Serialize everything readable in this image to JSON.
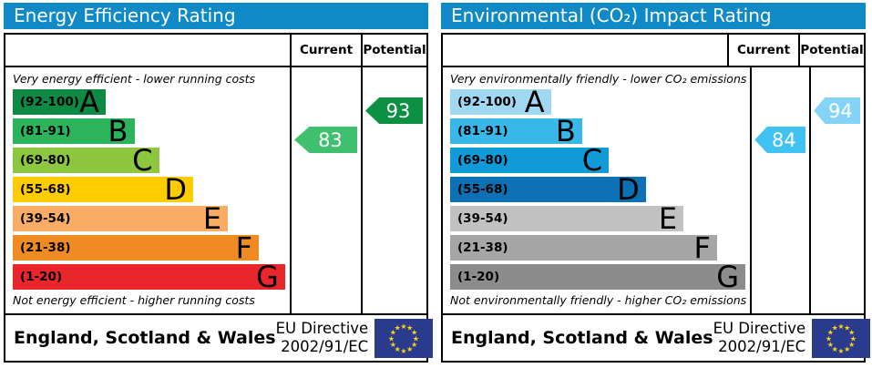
{
  "colors": {
    "header_bg": "#0f8ac6",
    "flag_bg": "#2a3b8e",
    "flag_star": "#fdd116",
    "border": "#000000"
  },
  "flag_star_glyph": "★",
  "panels": [
    {
      "title": "Energy Efficiency Rating",
      "columns": {
        "current": "Current",
        "potential": "Potential"
      },
      "top_caption": "Very energy efficient - lower running costs",
      "bottom_caption": "Not energy efficient - higher running costs",
      "bands": [
        {
          "range": "(92-100)",
          "letter": "A",
          "color": "#0f8a44",
          "width_pct": 34
        },
        {
          "range": "(81-91)",
          "letter": "B",
          "color": "#2cb45c",
          "width_pct": 44.5
        },
        {
          "range": "(69-80)",
          "letter": "C",
          "color": "#8dc63f",
          "width_pct": 53.5
        },
        {
          "range": "(55-68)",
          "letter": "D",
          "color": "#ffcc00",
          "width_pct": 66
        },
        {
          "range": "(39-54)",
          "letter": "E",
          "color": "#f9ad64",
          "width_pct": 78.7
        },
        {
          "range": "(21-38)",
          "letter": "F",
          "color": "#ef8b22",
          "width_pct": 90
        },
        {
          "range": "(1-20)",
          "letter": "G",
          "color": "#e9262b",
          "width_pct": 99.6
        }
      ],
      "current": {
        "value": 83,
        "color": "#3ec06e",
        "band": "B"
      },
      "potential": {
        "value": 93,
        "color": "#0c9144",
        "band": "A"
      },
      "footer": {
        "region": "England, Scotland & Wales",
        "directive_line1": "EU Directive",
        "directive_line2": "2002/91/EC"
      }
    },
    {
      "title": "Environmental (CO₂) Impact Rating",
      "columns": {
        "current": "Current",
        "potential": "Potential"
      },
      "top_caption": "Very environmentally friendly - lower CO₂ emissions",
      "bottom_caption": "Not environmentally friendly - higher CO₂ emissions",
      "bands": [
        {
          "range": "(92-100)",
          "letter": "A",
          "color": "#a0d8f2",
          "width_pct": 34
        },
        {
          "range": "(81-91)",
          "letter": "B",
          "color": "#38b8e9",
          "width_pct": 44.5
        },
        {
          "range": "(69-80)",
          "letter": "C",
          "color": "#109bd8",
          "width_pct": 53.5
        },
        {
          "range": "(55-68)",
          "letter": "D",
          "color": "#0c70b4",
          "width_pct": 66
        },
        {
          "range": "(39-54)",
          "letter": "E",
          "color": "#c1c1c1",
          "width_pct": 78.7
        },
        {
          "range": "(21-38)",
          "letter": "F",
          "color": "#a6a6a6",
          "width_pct": 90
        },
        {
          "range": "(1-20)",
          "letter": "G",
          "color": "#8c8c8c",
          "width_pct": 99.6
        }
      ],
      "current": {
        "value": 84,
        "color": "#40c2f2",
        "band": "B"
      },
      "potential": {
        "value": 94,
        "color": "#83d4f8",
        "band": "A"
      },
      "footer": {
        "region": "England, Scotland & Wales",
        "directive_line1": "EU Directive",
        "directive_line2": "2002/91/EC"
      }
    }
  ],
  "chart_data": [
    {
      "type": "bar",
      "title": "Energy Efficiency Rating",
      "categories": [
        "A",
        "B",
        "C",
        "D",
        "E",
        "F",
        "G"
      ],
      "band_ranges": [
        "92-100",
        "81-91",
        "69-80",
        "55-68",
        "39-54",
        "21-38",
        "1-20"
      ],
      "bar_length_pct": [
        34,
        44.5,
        53.5,
        66,
        78.7,
        90,
        99.6
      ],
      "current_value": 83,
      "current_band": "B",
      "potential_value": 93,
      "potential_band": "A",
      "top_label": "Very energy efficient - lower running costs",
      "bottom_label": "Not energy efficient - higher running costs",
      "value_scale": [
        1,
        100
      ]
    },
    {
      "type": "bar",
      "title": "Environmental (CO₂) Impact Rating",
      "categories": [
        "A",
        "B",
        "C",
        "D",
        "E",
        "F",
        "G"
      ],
      "band_ranges": [
        "92-100",
        "81-91",
        "69-80",
        "55-68",
        "39-54",
        "21-38",
        "1-20"
      ],
      "bar_length_pct": [
        34,
        44.5,
        53.5,
        66,
        78.7,
        90,
        99.6
      ],
      "current_value": 84,
      "current_band": "B",
      "potential_value": 94,
      "potential_band": "A",
      "top_label": "Very environmentally friendly - lower CO₂ emissions",
      "bottom_label": "Not environmentally friendly - higher CO₂ emissions",
      "value_scale": [
        1,
        100
      ]
    }
  ]
}
